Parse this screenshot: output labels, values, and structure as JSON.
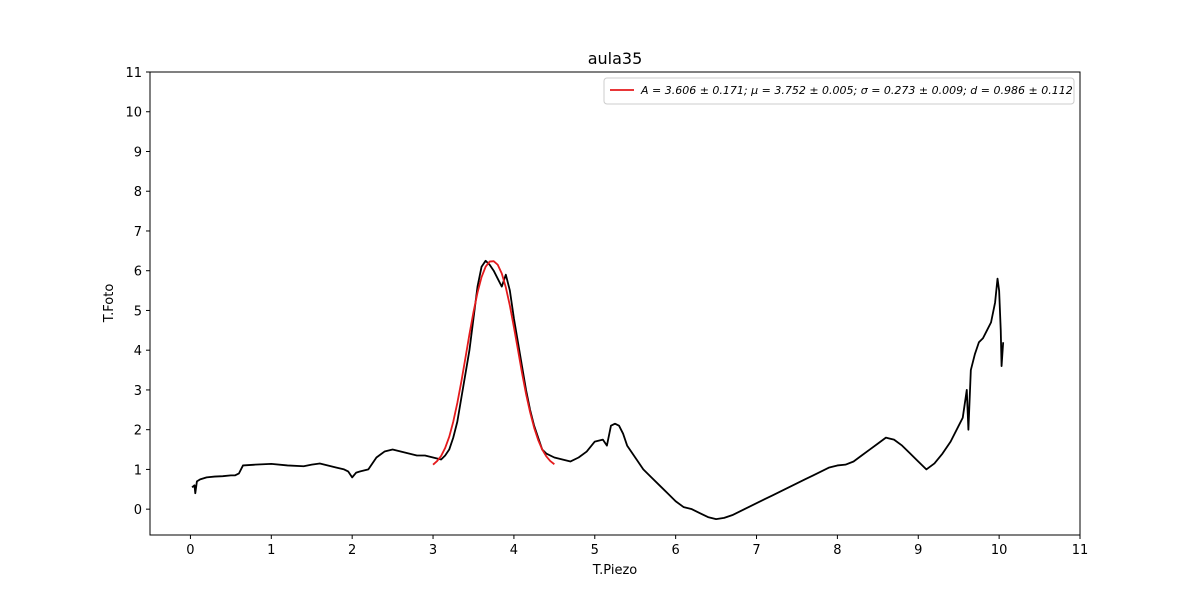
{
  "chart_data": {
    "type": "line",
    "title": "aula35",
    "xlabel": "T.Piezo",
    "ylabel": "T.Foto",
    "xlim": [
      -0.5,
      11
    ],
    "ylim": [
      -0.65,
      11
    ],
    "xticks": [
      0,
      1,
      2,
      3,
      4,
      5,
      6,
      7,
      8,
      9,
      10,
      11
    ],
    "yticks": [
      0,
      1,
      2,
      3,
      4,
      5,
      6,
      7,
      8,
      9,
      10,
      11
    ],
    "grid": false,
    "legend_position": "top-right",
    "series": [
      {
        "color": "#000000",
        "x": [
          0.02,
          0.05,
          0.06,
          0.08,
          0.12,
          0.2,
          0.3,
          0.4,
          0.5,
          0.55,
          0.6,
          0.65,
          0.8,
          1.0,
          1.2,
          1.4,
          1.5,
          1.6,
          1.7,
          1.8,
          1.9,
          1.95,
          2.0,
          2.05,
          2.1,
          2.2,
          2.3,
          2.4,
          2.5,
          2.6,
          2.7,
          2.8,
          2.9,
          3.0,
          3.1,
          3.15,
          3.2,
          3.25,
          3.3,
          3.35,
          3.4,
          3.45,
          3.5,
          3.55,
          3.6,
          3.65,
          3.7,
          3.75,
          3.8,
          3.85,
          3.9,
          3.95,
          4.0,
          4.05,
          4.1,
          4.15,
          4.2,
          4.25,
          4.3,
          4.35,
          4.4,
          4.5,
          4.6,
          4.7,
          4.8,
          4.9,
          5.0,
          5.1,
          5.15,
          5.2,
          5.25,
          5.3,
          5.35,
          5.4,
          5.5,
          5.6,
          5.7,
          5.8,
          5.9,
          6.0,
          6.1,
          6.2,
          6.3,
          6.4,
          6.5,
          6.6,
          6.7,
          6.8,
          6.9,
          7.0,
          7.1,
          7.2,
          7.3,
          7.4,
          7.5,
          7.6,
          7.7,
          7.8,
          7.9,
          8.0,
          8.1,
          8.2,
          8.3,
          8.4,
          8.5,
          8.6,
          8.7,
          8.8,
          8.9,
          9.0,
          9.1,
          9.2,
          9.3,
          9.4,
          9.5,
          9.55,
          9.6,
          9.62,
          9.65,
          9.7,
          9.75,
          9.8,
          9.85,
          9.9,
          9.95,
          9.98,
          10.0,
          10.02,
          10.03,
          10.05
        ],
        "y": [
          0.55,
          0.6,
          0.4,
          0.7,
          0.75,
          0.8,
          0.82,
          0.83,
          0.85,
          0.85,
          0.9,
          1.1,
          1.12,
          1.14,
          1.1,
          1.08,
          1.12,
          1.15,
          1.1,
          1.05,
          1.0,
          0.95,
          0.8,
          0.92,
          0.95,
          1.0,
          1.3,
          1.45,
          1.5,
          1.45,
          1.4,
          1.35,
          1.35,
          1.3,
          1.25,
          1.35,
          1.5,
          1.8,
          2.2,
          2.8,
          3.4,
          4.0,
          4.8,
          5.6,
          6.1,
          6.25,
          6.15,
          6.0,
          5.8,
          5.6,
          5.9,
          5.5,
          4.8,
          4.2,
          3.6,
          3.0,
          2.5,
          2.1,
          1.8,
          1.5,
          1.4,
          1.3,
          1.25,
          1.2,
          1.3,
          1.45,
          1.7,
          1.75,
          1.6,
          2.1,
          2.15,
          2.1,
          1.9,
          1.6,
          1.3,
          1.0,
          0.8,
          0.6,
          0.4,
          0.2,
          0.05,
          0.0,
          -0.1,
          -0.2,
          -0.25,
          -0.22,
          -0.15,
          -0.05,
          0.05,
          0.15,
          0.25,
          0.35,
          0.45,
          0.55,
          0.65,
          0.75,
          0.85,
          0.95,
          1.05,
          1.1,
          1.12,
          1.2,
          1.35,
          1.5,
          1.65,
          1.8,
          1.75,
          1.6,
          1.4,
          1.2,
          1.0,
          1.15,
          1.4,
          1.7,
          2.1,
          2.3,
          3.0,
          2.0,
          3.5,
          3.9,
          4.2,
          4.3,
          4.5,
          4.7,
          5.2,
          5.8,
          5.5,
          4.5,
          3.6,
          4.2
        ]
      },
      {
        "name": "A = 3.606 ± 0.171; μ = 3.752 ± 0.005; σ = 0.273 ± 0.009; d = 0.986 ± 0.112",
        "color": "#e41a1c",
        "x": [
          3.0,
          3.05,
          3.1,
          3.15,
          3.2,
          3.25,
          3.3,
          3.35,
          3.4,
          3.45,
          3.5,
          3.55,
          3.6,
          3.65,
          3.7,
          3.75,
          3.8,
          3.85,
          3.9,
          3.95,
          4.0,
          4.05,
          4.1,
          4.15,
          4.2,
          4.25,
          4.3,
          4.35,
          4.4,
          4.45,
          4.5
        ],
        "y": [
          1.12,
          1.21,
          1.34,
          1.54,
          1.82,
          2.2,
          2.67,
          3.21,
          3.8,
          4.4,
          4.96,
          5.45,
          5.84,
          6.1,
          6.23,
          6.24,
          6.15,
          5.93,
          5.58,
          5.12,
          4.58,
          4.01,
          3.43,
          2.9,
          2.44,
          2.05,
          1.74,
          1.5,
          1.33,
          1.21,
          1.13
        ]
      }
    ]
  }
}
